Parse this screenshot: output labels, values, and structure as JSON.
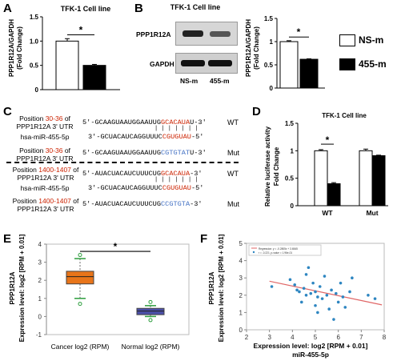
{
  "panels": {
    "A": "A",
    "B": "B",
    "C": "C",
    "D": "D",
    "E": "E",
    "F": "F"
  },
  "colors": {
    "ns_bar": "#ffffff",
    "m455_bar": "#000000",
    "red_seq": "#cc2200",
    "blue_seq": "#4472c4",
    "box_orange": "#e8751a",
    "box_blue": "#4b4fa8",
    "scatter_points": "#2e86c1",
    "fit_line": "#e06666"
  },
  "legend": {
    "items": [
      {
        "label": "NS-m",
        "color": "#ffffff"
      },
      {
        "label": "455-m",
        "color": "#000000"
      }
    ]
  },
  "blot": {
    "title": "TFK-1 Cell line",
    "rows": [
      "PPP1R12A",
      "GAPDH"
    ],
    "lanes": [
      "NS-m",
      "455-m"
    ]
  },
  "c": {
    "wt_label": "WT",
    "mut_label": "Mut",
    "top_prefix": "Position ",
    "top_range": "30-36",
    "top_suffix": " of",
    "utr": "PPP1R12A 3' UTR",
    "mirna": "hsa-miR-455-5p",
    "bottom_range": "1400-1407",
    "seq1_black": "5'-GCAAGUAAUGGAAUUG",
    "seq1_red": "GCACAUA",
    "seq1_end": "U-3'",
    "mir1_black": "3'-GCUACAUCAGGUUUC",
    "mir1_red": "CGUGUAU",
    "mir1_end": "-5'",
    "seq1m_black": "5'-GCAAGUAAUGGAAUUG",
    "seq1m_blue": "CGTGTAT",
    "seq1m_end": "U-3'",
    "seq2_black": "5'-AUACUACAUCUUUCUG",
    "seq2_red": "GCACAUA",
    "seq2_end": "-3'",
    "mir2_black": "3'-GCUACAUCAGGUUUC",
    "mir2_red": "CGUGUAU",
    "mir2_end": "-5'",
    "seq2m_black": "5'-AUACUACAUCUUUCUG",
    "seq2m_blue": "CCGTGTA",
    "seq2m_end": "-3'",
    "pairs": "| | | | | | |"
  },
  "star": "*",
  "chart_data": [
    {
      "panel": "A",
      "type": "bar",
      "title": "TFK-1 Cell line",
      "ylabel": "PPP1R12A/GAPDH (Fold Change)",
      "ylim": [
        0,
        1.5
      ],
      "yticks": [
        "0",
        "0.5",
        "1.0",
        "1.5"
      ],
      "categories": [
        "NS-m",
        "455-m"
      ],
      "values": [
        1.0,
        0.5
      ],
      "errors": [
        0.05,
        0.02
      ],
      "colors": [
        "#ffffff",
        "#000000"
      ]
    },
    {
      "panel": "B",
      "type": "bar",
      "ylabel": "PPP1R12A/GAPDH (Fold Change)",
      "ylim": [
        0,
        1.5
      ],
      "yticks": [
        "0",
        "0.5",
        "1",
        "1.5"
      ],
      "categories": [
        "NS-m",
        "455-m"
      ],
      "values": [
        1.0,
        0.62
      ],
      "errors": [
        0.02,
        0.01
      ],
      "colors": [
        "#ffffff",
        "#000000"
      ]
    },
    {
      "panel": "D",
      "type": "bar",
      "title": "TFK-1 Cell line",
      "ylabel": "Relative luciferase activity Fold Change",
      "ylim": [
        0,
        1.5
      ],
      "yticks": [
        "0",
        "0.5",
        "1",
        "1.5"
      ],
      "categories": [
        "WT",
        "Mut"
      ],
      "series": [
        {
          "name": "NS-m",
          "values": [
            1.0,
            1.0
          ],
          "errors": [
            0.02,
            0.03
          ]
        },
        {
          "name": "455-m",
          "values": [
            0.4,
            0.91
          ],
          "errors": [
            0.02,
            0.01
          ]
        }
      ]
    },
    {
      "panel": "E",
      "type": "box",
      "ylabel": "PPP1R12A Expression level: log2 [RPM + 0.01]",
      "ylim": [
        -1,
        4
      ],
      "yticks": [
        "-1",
        "0",
        "1",
        "2",
        "3",
        "4"
      ],
      "categories": [
        "Cancer log2 (RPM)",
        "Normal log2 (RPM)"
      ],
      "boxes": [
        {
          "whisker_low": 1.0,
          "q1": 1.8,
          "median": 2.2,
          "q3": 2.5,
          "whisker_high": 3.2,
          "outliers": [
            0.7,
            3.4
          ]
        },
        {
          "whisker_low": 0.0,
          "q1": 0.1,
          "median": 0.3,
          "q3": 0.45,
          "whisker_high": 0.6,
          "outliers": [
            -0.2,
            0.8
          ]
        }
      ]
    },
    {
      "panel": "F",
      "type": "scatter",
      "ylabel": "PPP1R12A Expression level: log2 [RPM + 0.01]",
      "xlabel": "Expression level: log2 [RPM + 0.01]",
      "xlabel2": "miR-455-5p",
      "xlim": [
        2,
        8
      ],
      "ylim": [
        0,
        5
      ],
      "xticks": [
        "2",
        "3",
        "4",
        "5",
        "6",
        "7",
        "8"
      ],
      "yticks": [
        "0",
        "1",
        "2",
        "3",
        "4",
        "5"
      ],
      "legend_lines": [
        "Regression: y = -0.2805x + 3.6545",
        "r = -0.221, p-value = 1.96e-01"
      ],
      "points": [
        [
          3.1,
          2.5
        ],
        [
          3.9,
          2.9
        ],
        [
          4.1,
          2.6
        ],
        [
          4.2,
          2.3
        ],
        [
          4.3,
          2.2
        ],
        [
          4.4,
          1.6
        ],
        [
          4.5,
          2.4
        ],
        [
          4.6,
          2.0
        ],
        [
          4.6,
          3.2
        ],
        [
          4.7,
          3.6
        ],
        [
          4.8,
          2.1
        ],
        [
          4.9,
          2.7
        ],
        [
          5.0,
          1.4
        ],
        [
          5.0,
          2.2
        ],
        [
          5.1,
          1.9
        ],
        [
          5.1,
          1.0
        ],
        [
          5.2,
          2.5
        ],
        [
          5.3,
          1.8
        ],
        [
          5.4,
          3.1
        ],
        [
          5.5,
          2.0
        ],
        [
          5.6,
          1.2
        ],
        [
          5.7,
          2.3
        ],
        [
          5.8,
          0.6
        ],
        [
          5.9,
          2.1
        ],
        [
          6.0,
          1.6
        ],
        [
          6.1,
          2.7
        ],
        [
          6.2,
          1.9
        ],
        [
          6.3,
          1.3
        ],
        [
          6.5,
          2.2
        ],
        [
          6.6,
          3.0
        ],
        [
          7.3,
          2.0
        ],
        [
          7.6,
          1.8
        ]
      ],
      "fit": [
        [
          3.0,
          2.81
        ],
        [
          7.9,
          1.44
        ]
      ]
    }
  ]
}
